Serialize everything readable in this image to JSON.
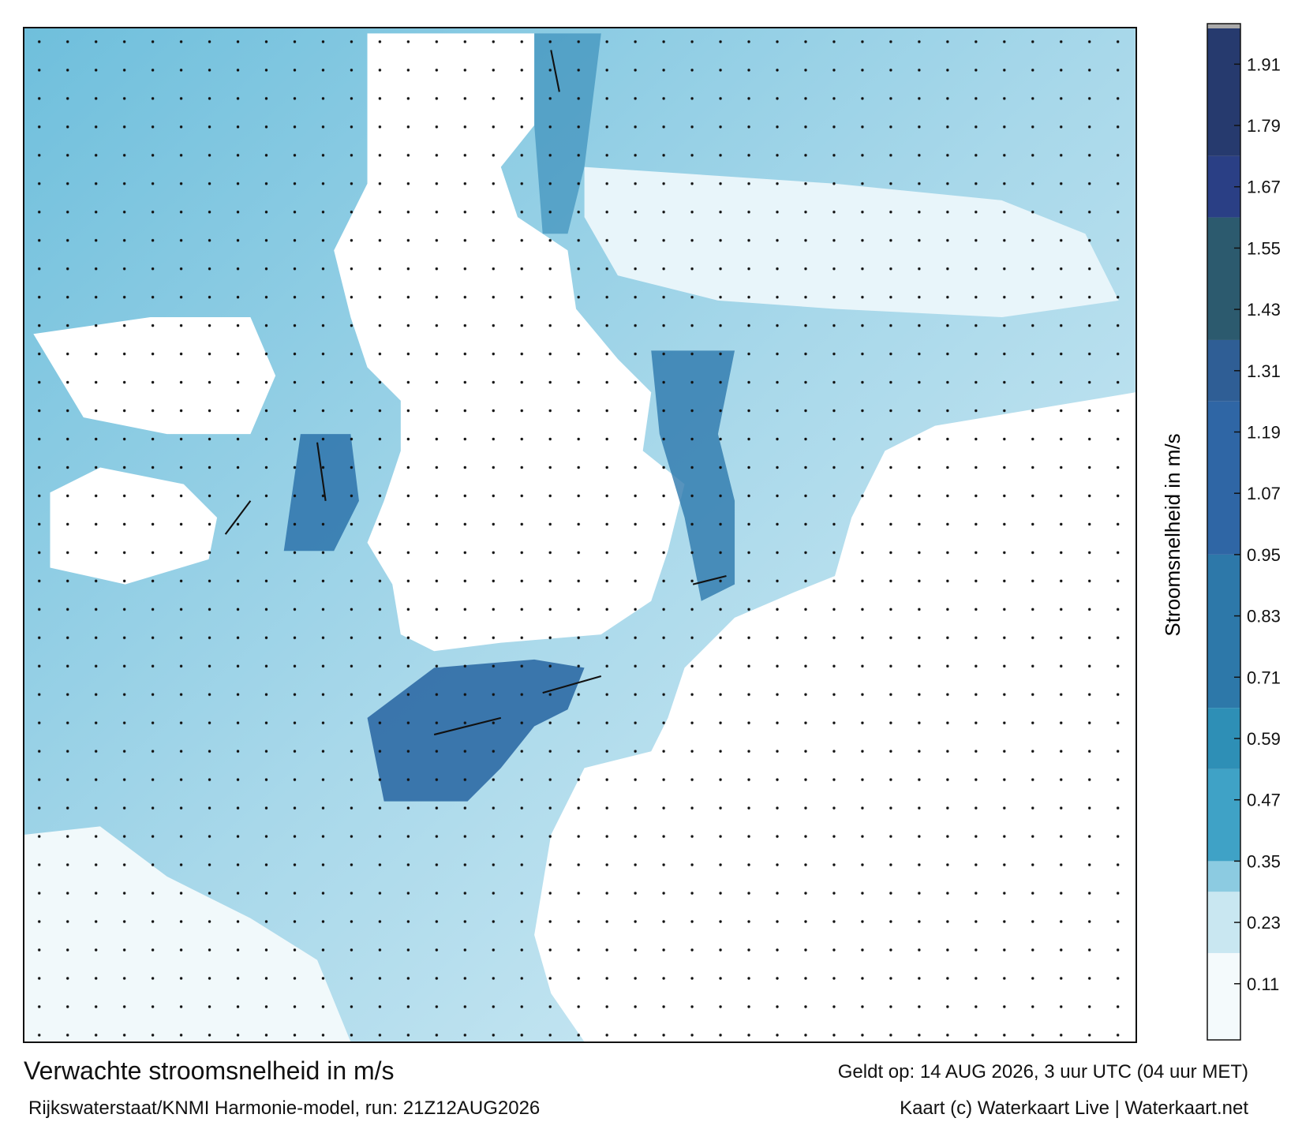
{
  "title": "Verwachte stroomsnelheid in m/s",
  "valid_time": "Geldt op: 14 AUG 2026, 3 uur UTC (04 uur MET)",
  "source": "Rijkswaterstaat/KNMI Harmonie-model, run: 21Z12AUG2026",
  "credit": "Kaart (c) Waterkaart Live | Waterkaart.net",
  "colorbar": {
    "label": "Stroomsnelheid in m/s",
    "lim": [
      0,
      1.98
    ],
    "ticks": [
      0.11,
      0.23,
      0.35,
      0.47,
      0.59,
      0.71,
      0.83,
      0.95,
      1.07,
      1.19,
      1.31,
      1.43,
      1.55,
      1.67,
      1.79,
      1.91
    ],
    "stops": [
      {
        "value": 0,
        "color": "#f4fafc"
      },
      {
        "value": 0.17,
        "color": "#c9e7f1"
      },
      {
        "value": 0.29,
        "color": "#8ccbe1"
      },
      {
        "value": 0.35,
        "color": "#3fa2c6"
      },
      {
        "value": 0.53,
        "color": "#2e8fb6"
      },
      {
        "value": 0.65,
        "color": "#2d78a9"
      },
      {
        "value": 0.95,
        "color": "#2f66a5"
      },
      {
        "value": 1.25,
        "color": "#2f5e95"
      },
      {
        "value": 1.37,
        "color": "#2c5a6e"
      },
      {
        "value": 1.61,
        "color": "#2a3f85"
      },
      {
        "value": 1.73,
        "color": "#263a6e"
      },
      {
        "value": 1.98,
        "color": "#1b1f3c"
      }
    ]
  }
}
